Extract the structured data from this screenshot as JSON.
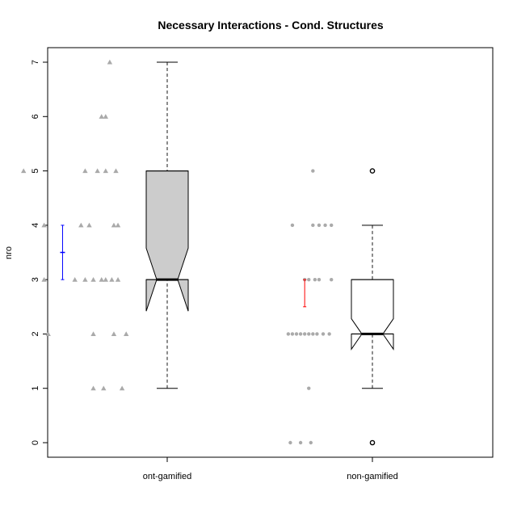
{
  "chart_data": {
    "type": "boxplot",
    "title": "Necessary Interactions - Cond. Structures",
    "xlabel": "",
    "ylabel": "nro",
    "ylim": [
      0,
      7
    ],
    "yticks": [
      "0",
      "1",
      "2",
      "3",
      "4",
      "5",
      "6",
      "7"
    ],
    "notched": true,
    "categories": [
      "ont-gamified",
      "non-gamified"
    ],
    "boxes": [
      {
        "category": "ont-gamified",
        "fill": "#cccccc",
        "min": 1,
        "q1": 3,
        "median": 3,
        "q3": 5,
        "max": 7,
        "notch_low": 2.42,
        "notch_high": 3.58,
        "outliers": [],
        "mean": 3.5,
        "mean_ci": [
          3.0,
          4.0
        ],
        "mean_color": "#0000ff",
        "jitter_marker": "triangle",
        "jitter_points": [
          {
            "y": 7,
            "dx": 0.72
          },
          {
            "y": 6,
            "dx": 0.68
          },
          {
            "y": 6,
            "dx": 0.7
          },
          {
            "y": 5,
            "dx": 0.3
          },
          {
            "y": 5,
            "dx": 0.6
          },
          {
            "y": 5,
            "dx": 0.66
          },
          {
            "y": 5,
            "dx": 0.7
          },
          {
            "y": 5,
            "dx": 0.75
          },
          {
            "y": 4,
            "dx": 0.4
          },
          {
            "y": 4,
            "dx": 0.58
          },
          {
            "y": 4,
            "dx": 0.62
          },
          {
            "y": 4,
            "dx": 0.74
          },
          {
            "y": 4,
            "dx": 0.76
          },
          {
            "y": 3,
            "dx": 0.4
          },
          {
            "y": 3,
            "dx": 0.55
          },
          {
            "y": 3,
            "dx": 0.6
          },
          {
            "y": 3,
            "dx": 0.64
          },
          {
            "y": 3,
            "dx": 0.68
          },
          {
            "y": 3,
            "dx": 0.7
          },
          {
            "y": 3,
            "dx": 0.73
          },
          {
            "y": 3,
            "dx": 0.76
          },
          {
            "y": 2,
            "dx": 0.42
          },
          {
            "y": 2,
            "dx": 0.64
          },
          {
            "y": 2,
            "dx": 0.74
          },
          {
            "y": 2,
            "dx": 0.8
          },
          {
            "y": 1,
            "dx": 0.64
          },
          {
            "y": 1,
            "dx": 0.69
          },
          {
            "y": 1,
            "dx": 0.78
          }
        ]
      },
      {
        "category": "non-gamified",
        "fill": "#ffffff",
        "min": 1,
        "q1": 2,
        "median": 2,
        "q3": 3,
        "max": 4,
        "notch_low": 1.72,
        "notch_high": 2.28,
        "outliers": [
          5,
          0
        ],
        "mean": 2.75,
        "mean_ci": [
          2.5,
          3.0
        ],
        "mean_color": "#ff0000",
        "jitter_marker": "circle",
        "jitter_points": [
          {
            "y": 5,
            "dx": 1.71
          },
          {
            "y": 4,
            "dx": 1.61
          },
          {
            "y": 4,
            "dx": 1.71
          },
          {
            "y": 4,
            "dx": 1.74
          },
          {
            "y": 4,
            "dx": 1.77
          },
          {
            "y": 4,
            "dx": 1.8
          },
          {
            "y": 3,
            "dx": 1.67
          },
          {
            "y": 3,
            "dx": 1.69
          },
          {
            "y": 3,
            "dx": 1.72
          },
          {
            "y": 3,
            "dx": 1.74
          },
          {
            "y": 3,
            "dx": 1.8
          },
          {
            "y": 2,
            "dx": 1.59
          },
          {
            "y": 2,
            "dx": 1.61
          },
          {
            "y": 2,
            "dx": 1.63
          },
          {
            "y": 2,
            "dx": 1.65
          },
          {
            "y": 2,
            "dx": 1.67
          },
          {
            "y": 2,
            "dx": 1.69
          },
          {
            "y": 2,
            "dx": 1.71
          },
          {
            "y": 2,
            "dx": 1.73
          },
          {
            "y": 2,
            "dx": 1.76
          },
          {
            "y": 2,
            "dx": 1.79
          },
          {
            "y": 1,
            "dx": 1.69
          },
          {
            "y": 0,
            "dx": 1.6
          },
          {
            "y": 0,
            "dx": 1.65
          },
          {
            "y": 0,
            "dx": 1.7
          }
        ]
      }
    ],
    "colors": {
      "jitter": "#aaaaaa",
      "box_stroke": "#000000",
      "whisker": "#666666"
    }
  }
}
